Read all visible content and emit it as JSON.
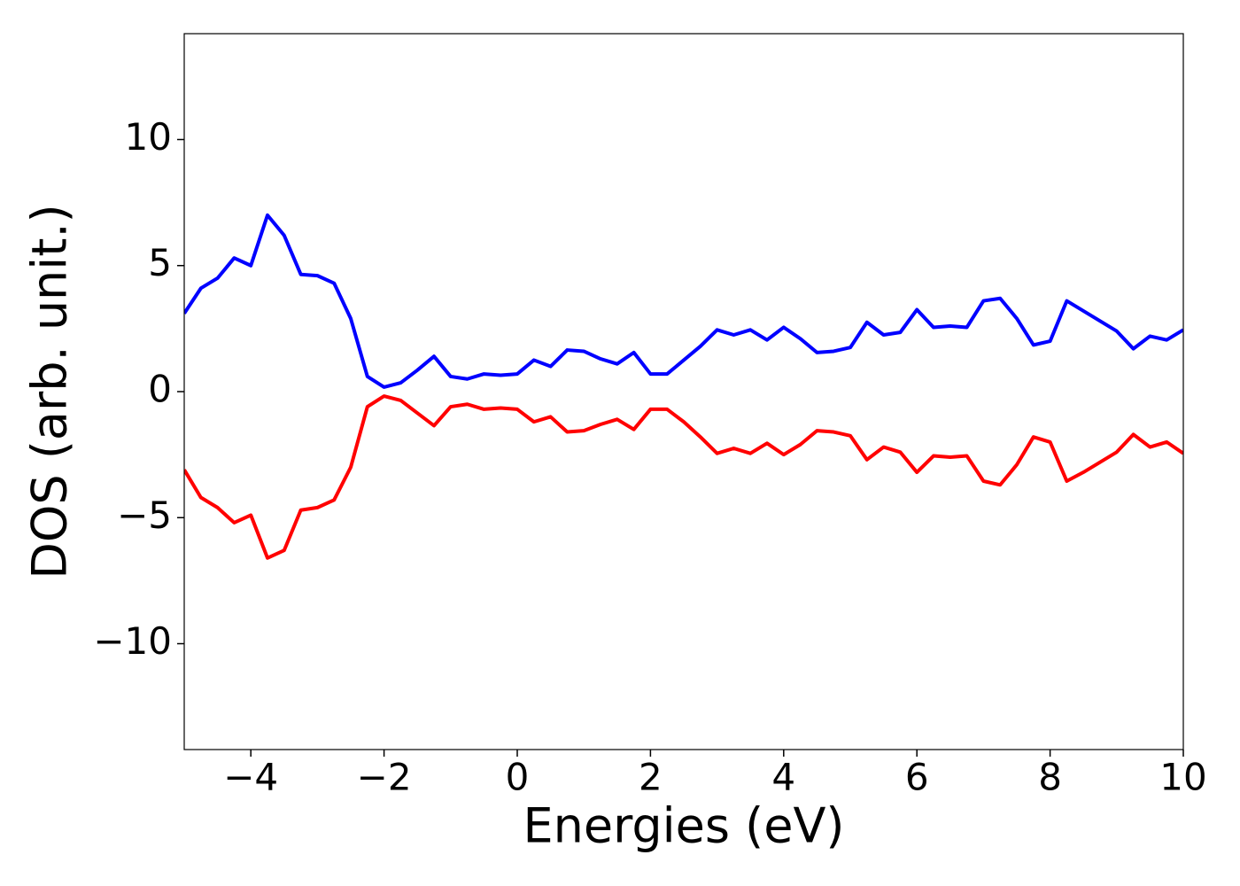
{
  "chart_data": {
    "type": "line",
    "x_label": "Energies (eV)",
    "y_label": "DOS (arb. unit.)",
    "x": [
      -5,
      -4.75,
      -4.5,
      -4.25,
      -4,
      -3.75,
      -3.5,
      -3.25,
      -3,
      -2.75,
      -2.5,
      -2.25,
      -2,
      -1.75,
      -1.5,
      -1.25,
      -1,
      -0.75,
      -0.5,
      -0.25,
      0,
      0.25,
      0.5,
      0.75,
      1,
      1.25,
      1.5,
      1.75,
      2,
      2.25,
      2.5,
      2.75,
      3,
      3.25,
      3.5,
      3.75,
      4,
      4.25,
      4.5,
      4.75,
      5,
      5.25,
      5.5,
      5.75,
      6,
      6.25,
      6.5,
      6.75,
      7,
      7.25,
      7.5,
      7.75,
      8,
      8.25,
      8.5,
      8.75,
      9,
      9.25,
      9.5,
      9.75,
      10
    ],
    "series": [
      {
        "color": "#0000ff",
        "values": [
          3.1,
          4.1,
          4.5,
          5.3,
          5.0,
          7.0,
          6.2,
          4.65,
          4.6,
          4.3,
          2.9,
          0.6,
          0.18,
          0.35,
          0.85,
          1.4,
          0.6,
          0.5,
          0.7,
          0.65,
          0.7,
          1.25,
          1.0,
          1.65,
          1.6,
          1.3,
          1.1,
          1.55,
          0.7,
          0.7,
          1.25,
          1.8,
          2.45,
          2.25,
          2.45,
          2.05,
          2.55,
          2.1,
          1.55,
          1.6,
          1.75,
          2.75,
          2.25,
          2.35,
          3.25,
          2.55,
          2.6,
          2.55,
          3.6,
          3.7,
          2.9,
          1.85,
          2.0,
          3.6,
          3.2,
          2.8,
          2.4,
          1.7,
          2.2,
          2.05,
          2.45
        ]
      },
      {
        "color": "#ff0000",
        "values": [
          -3.1,
          -4.2,
          -4.6,
          -5.2,
          -4.9,
          -6.6,
          -6.3,
          -4.7,
          -4.6,
          -4.3,
          -3.0,
          -0.6,
          -0.18,
          -0.35,
          -0.85,
          -1.35,
          -0.6,
          -0.5,
          -0.7,
          -0.65,
          -0.7,
          -1.2,
          -1.0,
          -1.6,
          -1.55,
          -1.3,
          -1.1,
          -1.5,
          -0.7,
          -0.7,
          -1.2,
          -1.8,
          -2.45,
          -2.25,
          -2.45,
          -2.05,
          -2.5,
          -2.1,
          -1.55,
          -1.6,
          -1.75,
          -2.7,
          -2.2,
          -2.4,
          -3.2,
          -2.55,
          -2.6,
          -2.55,
          -3.55,
          -3.7,
          -2.9,
          -1.8,
          -2.0,
          -3.55,
          -3.2,
          -2.8,
          -2.4,
          -1.7,
          -2.2,
          -2.0,
          -2.45
        ]
      }
    ],
    "xlim": [
      -5,
      10
    ],
    "ylim": [
      -14.2,
      14.2
    ],
    "xticks": [
      {
        "value": -4,
        "label": "−4"
      },
      {
        "value": -2,
        "label": "−2"
      },
      0,
      2,
      4,
      6,
      8,
      10
    ],
    "yticks": [
      {
        "value": -10,
        "label": "−10"
      },
      {
        "value": -5,
        "label": "−5"
      },
      0,
      5,
      10
    ],
    "grid": false
  }
}
